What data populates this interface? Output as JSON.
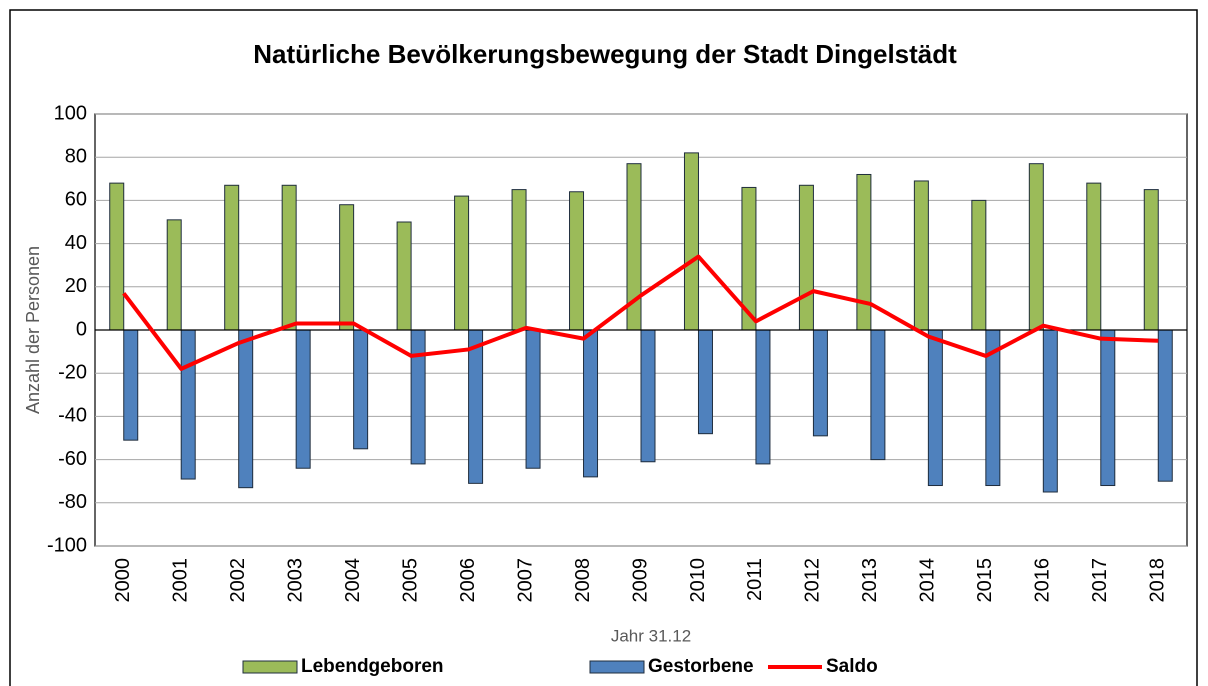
{
  "chart_data": {
    "type": "bar",
    "title": "Natürliche Bevölkerungsbewegung der Stadt Dingelstädt",
    "x_label": "Jahr 31.12",
    "y_label": "Anzahl der Personen",
    "categories": [
      "2000",
      "2001",
      "2002",
      "2003",
      "2004",
      "2005",
      "2006",
      "2007",
      "2008",
      "2009",
      "2010",
      "2011",
      "2012",
      "2013",
      "2014",
      "2015",
      "2016",
      "2017",
      "2018"
    ],
    "series": [
      {
        "name": "Lebendgeboren",
        "type": "bar",
        "color": "#9bbb59",
        "values": [
          68,
          51,
          67,
          67,
          58,
          50,
          62,
          65,
          64,
          77,
          82,
          66,
          67,
          72,
          69,
          60,
          77,
          68,
          65
        ]
      },
      {
        "name": "Gestorbene",
        "type": "bar",
        "color": "#4f81bd",
        "values": [
          -51,
          -69,
          -73,
          -64,
          -55,
          -62,
          -71,
          -64,
          -68,
          -61,
          -48,
          -62,
          -49,
          -60,
          -72,
          -72,
          -75,
          -72,
          -70
        ]
      },
      {
        "name": "Saldo",
        "type": "line",
        "color": "#ff0000",
        "values": [
          17,
          -18,
          -6,
          3,
          3,
          -12,
          -9,
          1,
          -4,
          16,
          34,
          4,
          18,
          12,
          -3,
          -12,
          2,
          -4,
          -5
        ]
      }
    ],
    "ylim": [
      -100,
      100
    ],
    "yticks": [
      -100,
      -80,
      -60,
      -40,
      -20,
      0,
      20,
      40,
      60,
      80,
      100
    ],
    "grid": true,
    "legend": "bottom"
  }
}
